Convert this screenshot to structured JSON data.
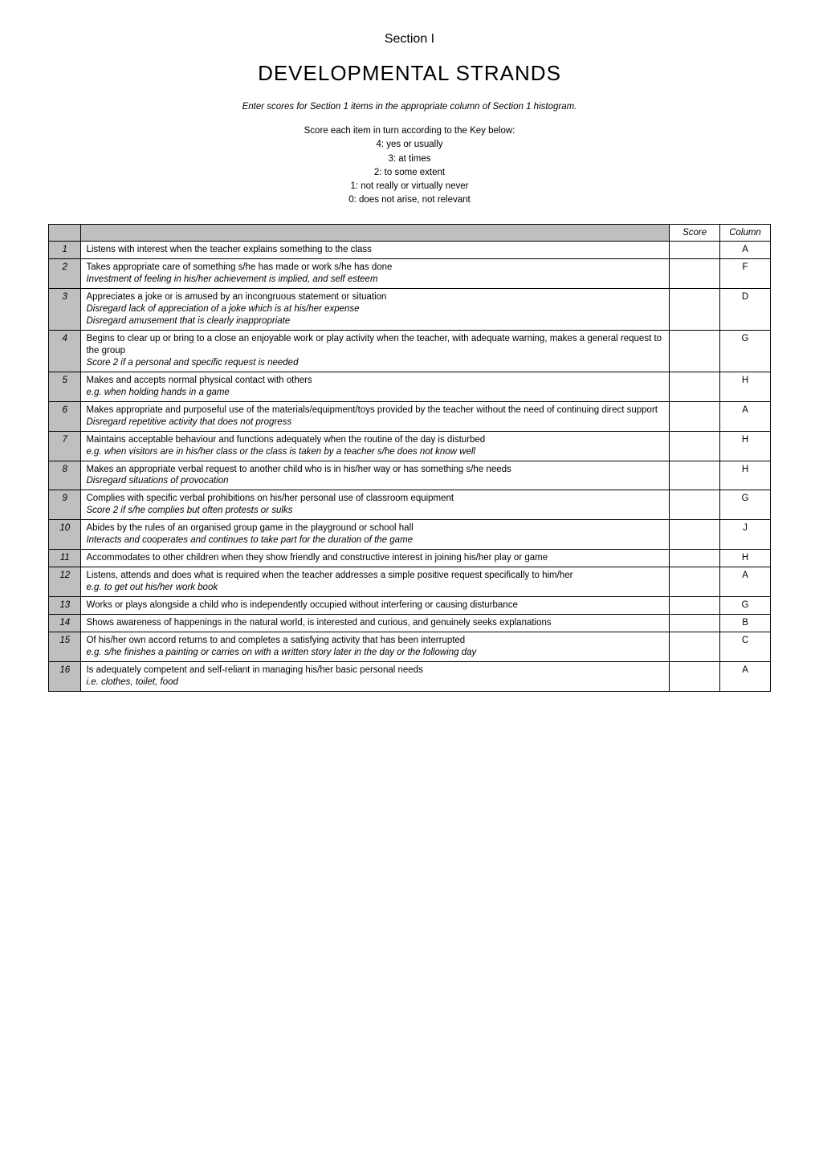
{
  "section_label": "Section I",
  "main_title": "DEVELOPMENTAL STRANDS",
  "subtitle": "Enter scores for Section 1 items in the appropriate column of Section 1 histogram.",
  "key": {
    "intro": "Score each item in turn according to the Key below:",
    "lines": [
      "4: yes or usually",
      "3: at times",
      "2: to some extent",
      "1: not really or virtually never",
      "0: does not arise, not relevant"
    ]
  },
  "headers": {
    "score": "Score",
    "column": "Column"
  },
  "colors": {
    "shade": "#bfbfbf",
    "border": "#000000",
    "background": "#ffffff",
    "text": "#000000"
  },
  "rows": [
    {
      "n": "1",
      "lines": [
        {
          "text": "Listens with interest when the teacher explains something to the class",
          "italic": false
        }
      ],
      "col": "A"
    },
    {
      "n": "2",
      "lines": [
        {
          "text": "Takes appropriate care of something s/he has made or work s/he has done",
          "italic": false
        },
        {
          "text": "Investment of feeling in his/her achievement is implied, and self esteem",
          "italic": true
        }
      ],
      "col": "F"
    },
    {
      "n": "3",
      "lines": [
        {
          "text": "Appreciates a joke or is amused by an incongruous statement or situation",
          "italic": false
        },
        {
          "text": "Disregard lack of appreciation of a joke which is at his/her expense",
          "italic": true
        },
        {
          "text": "Disregard amusement that is clearly inappropriate",
          "italic": true
        }
      ],
      "col": "D"
    },
    {
      "n": "4",
      "lines": [
        {
          "text": "Begins to clear up or bring to a close an enjoyable work or play activity when the teacher, with adequate warning, makes a general request to the group",
          "italic": false
        },
        {
          "text": "Score 2 if a personal and specific request is needed",
          "italic": true
        }
      ],
      "col": "G"
    },
    {
      "n": "5",
      "lines": [
        {
          "text": "Makes and accepts normal physical contact with others",
          "italic": false
        },
        {
          "text": "e.g. when holding hands in a game",
          "italic": true
        }
      ],
      "col": "H"
    },
    {
      "n": "6",
      "lines": [
        {
          "text": "Makes appropriate and purposeful use of the materials/equipment/toys provided by the teacher without the need of continuing direct support",
          "italic": false
        },
        {
          "text": "Disregard repetitive activity that does not progress",
          "italic": true
        }
      ],
      "col": "A"
    },
    {
      "n": "7",
      "lines": [
        {
          "text": "Maintains acceptable behaviour and functions adequately when the routine of the day is disturbed",
          "italic": false
        },
        {
          "text": "e.g. when visitors are in his/her class or the class is taken by a teacher s/he does not know well",
          "italic": true
        }
      ],
      "col": "H"
    },
    {
      "n": "8",
      "lines": [
        {
          "text": "Makes an appropriate verbal request to another child who is in his/her way or has something s/he needs",
          "italic": false
        },
        {
          "text": "Disregard situations of provocation",
          "italic": true
        }
      ],
      "col": "H"
    },
    {
      "n": "9",
      "lines": [
        {
          "text": "Complies with specific verbal prohibitions on his/her personal use of classroom equipment",
          "italic": false
        },
        {
          "text": "Score 2 if s/he complies but often protests or sulks",
          "italic": true
        }
      ],
      "col": "G"
    },
    {
      "n": "10",
      "lines": [
        {
          "text": "Abides by the rules of an organised group game in the playground or school hall",
          "italic": false
        },
        {
          "text": "Interacts and cooperates and continues to take part for the duration of the game",
          "italic": true
        }
      ],
      "col": "J"
    },
    {
      "n": "11",
      "lines": [
        {
          "text": "Accommodates to other children when they show friendly and constructive interest in joining his/her play or game",
          "italic": false
        }
      ],
      "col": "H"
    },
    {
      "n": "12",
      "lines": [
        {
          "text": "Listens, attends and does what is required when the teacher addresses a simple positive request specifically to him/her",
          "italic": false
        },
        {
          "text": "e.g. to get out his/her work book",
          "italic": true
        }
      ],
      "col": "A"
    },
    {
      "n": "13",
      "lines": [
        {
          "text": "Works or plays alongside a child who is independently occupied without interfering or causing disturbance",
          "italic": false
        }
      ],
      "col": "G"
    },
    {
      "n": "14",
      "lines": [
        {
          "text": "Shows awareness of happenings in the natural world, is interested and curious, and genuinely seeks explanations",
          "italic": false
        }
      ],
      "col": "B"
    },
    {
      "n": "15",
      "lines": [
        {
          "text": "Of his/her own accord returns to and completes a satisfying activity that has been interrupted",
          "italic": false
        },
        {
          "text": "e.g. s/he finishes a painting or carries on with a written story later in the day or the following day",
          "italic": true
        }
      ],
      "col": "C"
    },
    {
      "n": "16",
      "lines": [
        {
          "text": "Is adequately competent and self-reliant in managing his/her basic personal needs",
          "italic": false
        },
        {
          "text": "i.e. clothes, toilet, food",
          "italic": true
        }
      ],
      "col": "A"
    }
  ]
}
